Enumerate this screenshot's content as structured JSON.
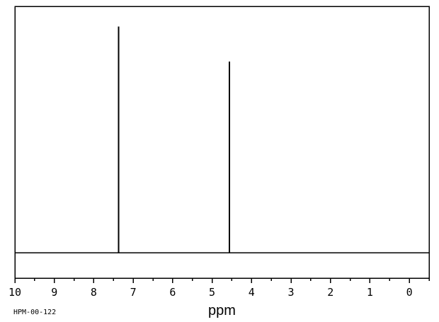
{
  "figure": {
    "background_color": "#ffffff",
    "line_color": "#000000"
  },
  "chart_data": {
    "type": "line",
    "subtype": "nmr-stick-spectrum",
    "title": "",
    "xlabel": "ppm",
    "ylabel": "",
    "annotation": "HPM-00-122",
    "grid": false,
    "legend": false,
    "x_axis": {
      "unit": "ppm",
      "label_min": 0,
      "label_max": 10,
      "edge_min": -0.5,
      "edge_max": 10,
      "reversed": true,
      "major_tick_step": 1,
      "minor_tick_step": 0.5,
      "tick_labels": [
        "10",
        "9",
        "8",
        "7",
        "6",
        "5",
        "4",
        "3",
        "2",
        "1",
        "0"
      ]
    },
    "y_axis": {
      "visible": false,
      "range": [
        0,
        1.09
      ]
    },
    "baseline_intensity": 0,
    "peaks": [
      {
        "ppm": 7.37,
        "rel_intensity": 1.0
      },
      {
        "ppm": 4.56,
        "rel_intensity": 0.845
      }
    ],
    "line_color": "#000000"
  }
}
